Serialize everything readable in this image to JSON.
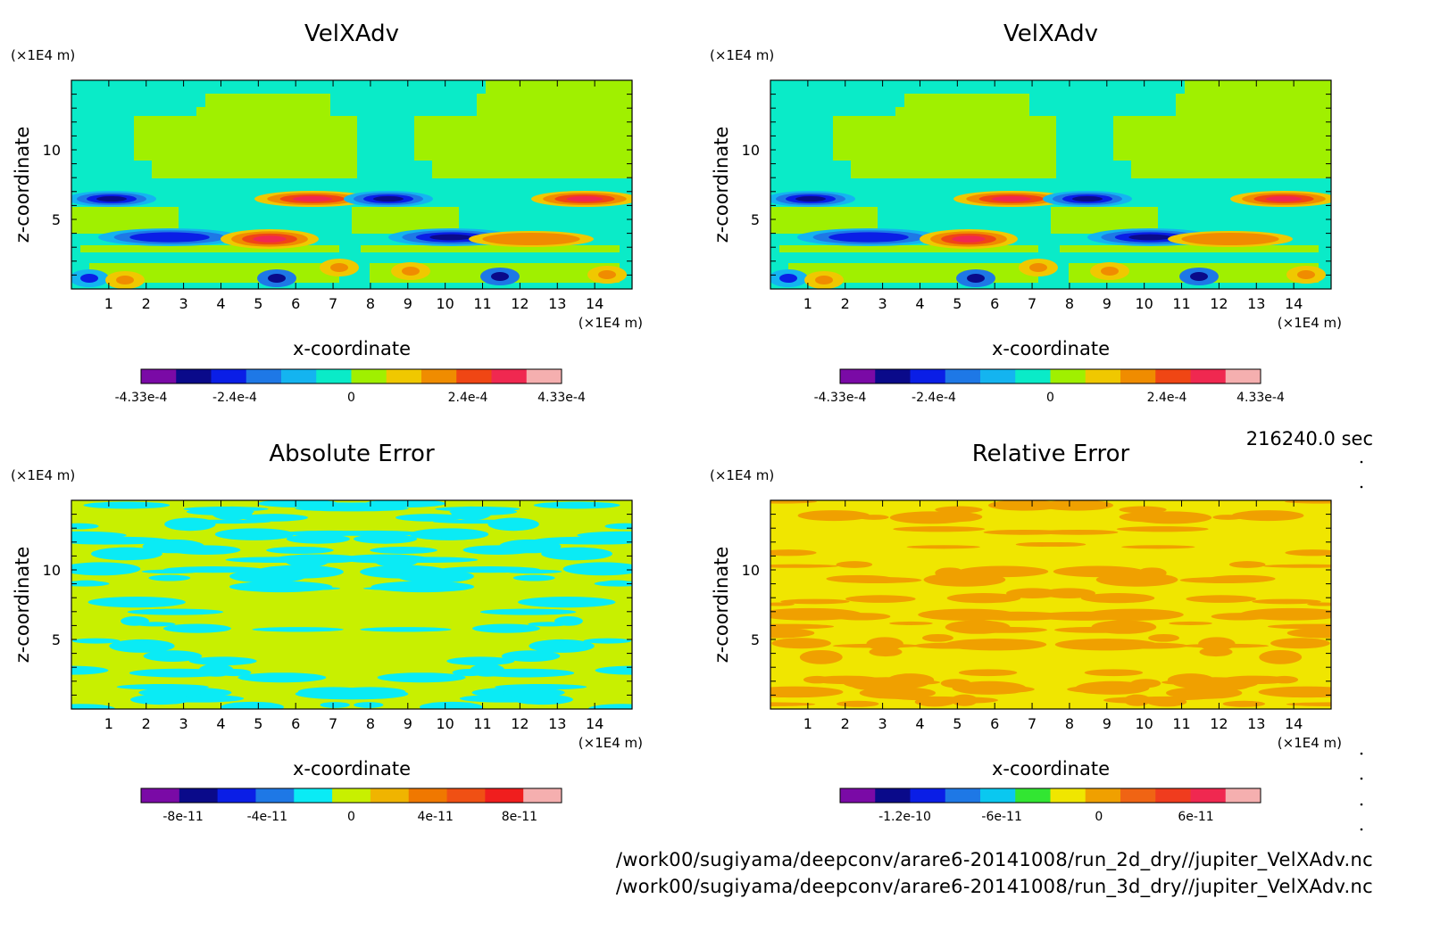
{
  "time_label": "216240.0 sec",
  "file_paths": [
    "/work00/sugiyama/deepconv/arare6-20141008/run_2d_dry//jupiter_VelXAdv.nc",
    "/work00/sugiyama/deepconv/arare6-20141008/run_3d_dry//jupiter_VelXAdv.nc"
  ],
  "colors": {
    "plot1_levels": [
      "#7a0aa6",
      "#0a0a8a",
      "#0a1ee6",
      "#1e78e6",
      "#14b4f0",
      "#0aebc8",
      "#a0f000",
      "#f0c800",
      "#f08c00",
      "#f04614",
      "#f02850",
      "#f5afaf"
    ],
    "plot3_levels": [
      "#7a0aa6",
      "#0a0a8a",
      "#0a1ee6",
      "#1e78e6",
      "#0aebf5",
      "#c8f000",
      "#f0b400",
      "#f07800",
      "#f05014",
      "#f01e1e",
      "#f5afaf"
    ],
    "plot4_levels": [
      "#7a0aa6",
      "#0a0a8a",
      "#0a1ee6",
      "#1e78e6",
      "#0ac8f0",
      "#32e632",
      "#f0e600",
      "#f0a000",
      "#f06414",
      "#f03c1e",
      "#f02850",
      "#f5afaf"
    ]
  },
  "chart_data": [
    {
      "type": "heatmap",
      "title": "VelXAdv",
      "xlabel": "x-coordinate",
      "ylabel": "z-coordinate",
      "xunit": "(×1E4 m)",
      "yunit": "(×1E4 m)",
      "xlim": [
        0,
        15
      ],
      "ylim": [
        0,
        15
      ],
      "xticks": [
        "1",
        "2",
        "3",
        "4",
        "5",
        "6",
        "7",
        "8",
        "9",
        "10",
        "11",
        "12",
        "13",
        "14"
      ],
      "yticks": [
        "5",
        "10"
      ],
      "colorbar_ticks": [
        "-4.33e-4",
        "-2.4e-4",
        "0",
        "2.4e-4",
        "4.33e-4"
      ],
      "colorbar_tick_values": [
        -0.000433,
        -0.00024,
        0,
        0.00024,
        0.000433
      ],
      "colorbar_range": [
        -0.000433,
        0.000433
      ],
      "colorbar_levels": 12,
      "background_value": 0
    },
    {
      "type": "heatmap",
      "title": "VelXAdv",
      "xlabel": "x-coordinate",
      "ylabel": "z-coordinate",
      "xunit": "(×1E4 m)",
      "yunit": "(×1E4 m)",
      "xlim": [
        0,
        15
      ],
      "ylim": [
        0,
        15
      ],
      "xticks": [
        "1",
        "2",
        "3",
        "4",
        "5",
        "6",
        "7",
        "8",
        "9",
        "10",
        "11",
        "12",
        "13",
        "14"
      ],
      "yticks": [
        "5",
        "10"
      ],
      "colorbar_ticks": [
        "-4.33e-4",
        "-2.4e-4",
        "0",
        "2.4e-4",
        "4.33e-4"
      ],
      "colorbar_tick_values": [
        -0.000433,
        -0.00024,
        0,
        0.00024,
        0.000433
      ],
      "colorbar_range": [
        -0.000433,
        0.000433
      ],
      "colorbar_levels": 12,
      "background_value": 0
    },
    {
      "type": "heatmap",
      "title": "Absolute Error",
      "xlabel": "x-coordinate",
      "ylabel": "z-coordinate",
      "xunit": "(×1E4 m)",
      "yunit": "(×1E4 m)",
      "xlim": [
        0,
        15
      ],
      "ylim": [
        0,
        15
      ],
      "xticks": [
        "1",
        "2",
        "3",
        "4",
        "5",
        "6",
        "7",
        "8",
        "9",
        "10",
        "11",
        "12",
        "13",
        "14"
      ],
      "yticks": [
        "5",
        "10"
      ],
      "colorbar_ticks": [
        "-8e-11",
        "-4e-11",
        "0",
        "4e-11",
        "8e-11"
      ],
      "colorbar_tick_values": [
        -8e-11,
        -4e-11,
        0,
        4e-11,
        8e-11
      ],
      "colorbar_range": [
        -1e-10,
        1e-10
      ],
      "colorbar_levels": 10,
      "dominant_levels": [
        "< 0",
        "0 to 2e-11"
      ]
    },
    {
      "type": "heatmap",
      "title": "Relative Error",
      "xlabel": "x-coordinate",
      "ylabel": "z-coordinate",
      "xunit": "(×1E4 m)",
      "yunit": "(×1E4 m)",
      "xlim": [
        0,
        15
      ],
      "ylim": [
        0,
        15
      ],
      "xticks": [
        "1",
        "2",
        "3",
        "4",
        "5",
        "6",
        "7",
        "8",
        "9",
        "10",
        "11",
        "12",
        "13",
        "14"
      ],
      "yticks": [
        "5",
        "10"
      ],
      "colorbar_ticks": [
        "-1.2e-10",
        "-6e-11",
        "0",
        "6e-11"
      ],
      "colorbar_tick_values": [
        -1.2e-10,
        -6e-11,
        0,
        6e-11
      ],
      "colorbar_range": [
        -1.6e-10,
        1e-10
      ],
      "colorbar_levels": 12,
      "dominant_levels": [
        "0 to 1.5e-11",
        "1.5e-11 to 3e-11"
      ]
    }
  ]
}
